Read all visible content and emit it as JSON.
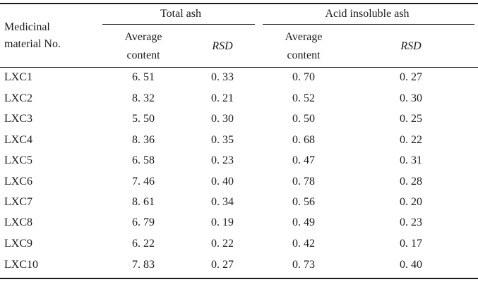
{
  "table": {
    "header": {
      "row_label": "Medicinal material No.",
      "row_label_line1": "Medicinal",
      "row_label_line2": "material No.",
      "groups": [
        {
          "label": "Total ash",
          "avg_line1": "Average",
          "avg_line2": "content",
          "rsd": "RSD"
        },
        {
          "label": "Acid insoluble ash",
          "avg_line1": "Average",
          "avg_line2": "content",
          "rsd": "RSD"
        }
      ]
    },
    "rows": [
      {
        "id": "LXC1",
        "total_avg": "6. 51",
        "total_rsd": "0. 33",
        "acid_avg": "0. 70",
        "acid_rsd": "0. 27"
      },
      {
        "id": "LXC2",
        "total_avg": "8. 32",
        "total_rsd": "0. 21",
        "acid_avg": "0. 52",
        "acid_rsd": "0. 30"
      },
      {
        "id": "LXC3",
        "total_avg": "5. 50",
        "total_rsd": "0. 30",
        "acid_avg": "0. 50",
        "acid_rsd": "0. 25"
      },
      {
        "id": "LXC4",
        "total_avg": "8. 36",
        "total_rsd": "0. 35",
        "acid_avg": "0. 68",
        "acid_rsd": "0. 22"
      },
      {
        "id": "LXC5",
        "total_avg": "6. 58",
        "total_rsd": "0. 23",
        "acid_avg": "0. 47",
        "acid_rsd": "0. 31"
      },
      {
        "id": "LXC6",
        "total_avg": "7. 46",
        "total_rsd": "0. 40",
        "acid_avg": "0. 78",
        "acid_rsd": "0. 28"
      },
      {
        "id": "LXC7",
        "total_avg": "8. 61",
        "total_rsd": "0. 34",
        "acid_avg": "0. 56",
        "acid_rsd": "0. 20"
      },
      {
        "id": "LXC8",
        "total_avg": "6. 79",
        "total_rsd": "0. 19",
        "acid_avg": "0. 49",
        "acid_rsd": "0. 23"
      },
      {
        "id": "LXC9",
        "total_avg": "6. 22",
        "total_rsd": "0. 22",
        "acid_avg": "0. 42",
        "acid_rsd": "0. 17"
      },
      {
        "id": "LXC10",
        "total_avg": "7. 83",
        "total_rsd": "0. 27",
        "acid_avg": "0. 73",
        "acid_rsd": "0. 40"
      }
    ]
  }
}
